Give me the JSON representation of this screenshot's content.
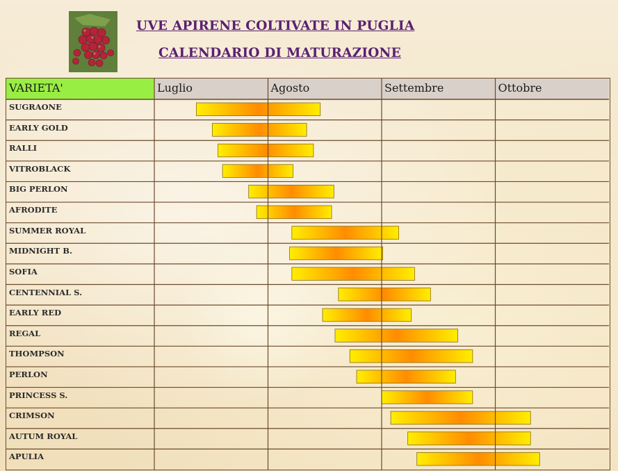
{
  "header": {
    "title_line1": "UVE  APIRENE COLTIVATE IN PUGLIA",
    "title_line2": "CALENDARIO DI MATURAZIONE",
    "title_color": "#5a2070",
    "logo_icon": "grape-bunch-photo"
  },
  "chart_data": {
    "type": "bar",
    "subtype": "gantt",
    "title": "CALENDARIO DI MATURAZIONE",
    "category_header": "VARIETA'",
    "x_axis_unit": "month",
    "months": [
      "Luglio",
      "Agosto",
      "Settembre",
      "Ottobre"
    ],
    "xlim": [
      0,
      4
    ],
    "colors": {
      "header_bg": "#d9d0c9",
      "variety_header_bg": "#99ee44",
      "bar_edge": "#ffee00",
      "bar_center": "#ff8c00",
      "grid_line": "#6b4a2c"
    },
    "rows": [
      {
        "name": "SUGRAONE",
        "start": 0.37,
        "end": 1.46
      },
      {
        "name": "EARLY GOLD",
        "start": 0.51,
        "end": 1.34
      },
      {
        "name": "RALLI",
        "start": 0.56,
        "end": 1.4
      },
      {
        "name": "VITROBLACK",
        "start": 0.6,
        "end": 1.22
      },
      {
        "name": "BIG PERLON",
        "start": 0.83,
        "end": 1.58
      },
      {
        "name": "AFRODITE",
        "start": 0.9,
        "end": 1.56
      },
      {
        "name": "SUMMER ROYAL",
        "start": 1.21,
        "end": 2.15
      },
      {
        "name": "MIDNIGHT  B.",
        "start": 1.19,
        "end": 2.01
      },
      {
        "name": "SOFIA",
        "start": 1.21,
        "end": 2.29
      },
      {
        "name": "CENTENNIAL S.",
        "start": 1.62,
        "end": 2.43
      },
      {
        "name": "EARLY RED",
        "start": 1.48,
        "end": 2.26
      },
      {
        "name": "REGAL",
        "start": 1.59,
        "end": 2.67
      },
      {
        "name": "THOMPSON",
        "start": 1.72,
        "end": 2.8
      },
      {
        "name": "PERLON",
        "start": 1.78,
        "end": 2.65
      },
      {
        "name": "PRINCESS S.",
        "start": 2.0,
        "end": 2.8
      },
      {
        "name": "CRIMSON",
        "start": 2.08,
        "end": 3.31
      },
      {
        "name": "AUTUM ROYAL",
        "start": 2.23,
        "end": 3.31
      },
      {
        "name": "APULIA",
        "start": 2.31,
        "end": 3.39
      }
    ]
  }
}
